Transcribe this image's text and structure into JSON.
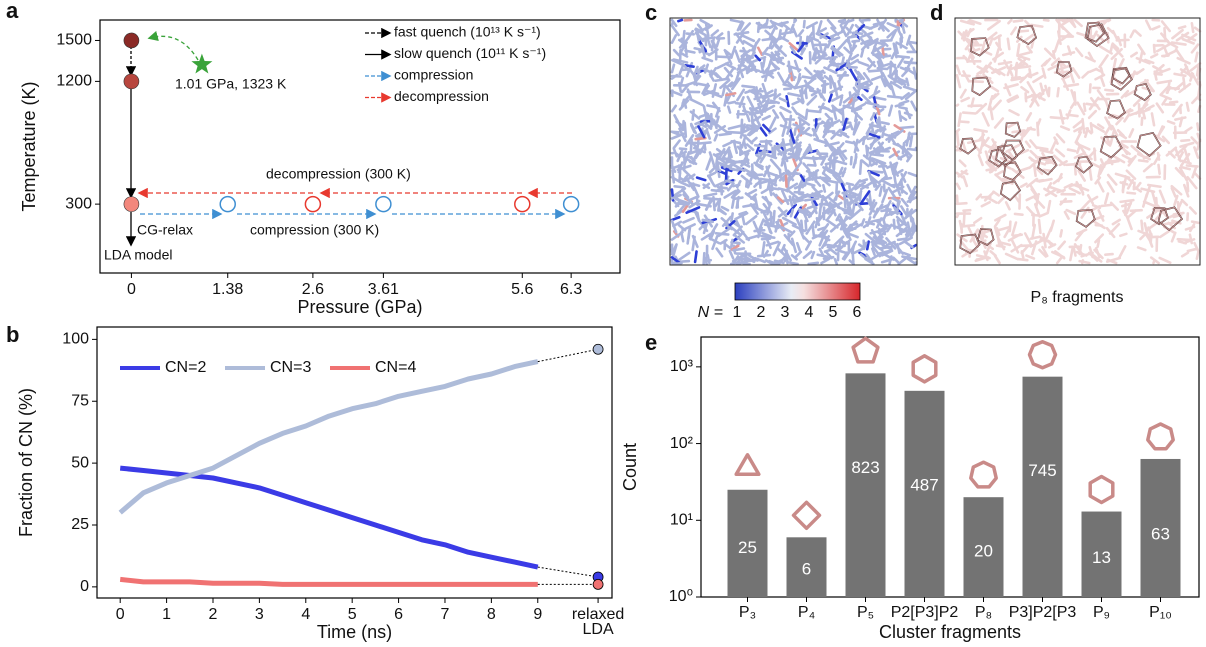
{
  "chart_data": [
    {
      "type": "scatter",
      "x_label": "Pressure (GPa)",
      "y_label": "Temperature (K)",
      "xlim": [
        -0.45,
        7
      ],
      "ylim": [
        -205,
        1650
      ],
      "xticks": [
        0,
        1.38,
        2.6,
        3.61,
        5.6,
        6.3
      ],
      "yticks": [
        300,
        1200,
        1500
      ],
      "series": [
        {
          "x": [
            0
          ],
          "values": [
            1500
          ],
          "color": "#8b2a26"
        },
        {
          "x": [
            0
          ],
          "values": [
            1200
          ],
          "color": "#b8463e"
        },
        {
          "x": [
            0
          ],
          "values": [
            300
          ],
          "color": "#f2877c"
        },
        {
          "x": [
            1.38,
            3.61,
            6.3
          ],
          "values": [
            300,
            300,
            300
          ],
          "color": "#3f8fd2",
          "hollow": true
        },
        {
          "x": [
            2.6,
            5.6
          ],
          "values": [
            300,
            300
          ],
          "color": "#e8392f",
          "hollow": true
        },
        {
          "x": [
            1.01
          ],
          "values": [
            1323
          ],
          "color": "#3aa33a",
          "marker": "star"
        }
      ],
      "legend": [
        {
          "label": "fast quench (10¹³ K s⁻¹)",
          "color": "#000000",
          "dashed": true
        },
        {
          "label": "slow quench (10¹¹ K s⁻¹)",
          "color": "#000000",
          "dashed": false
        },
        {
          "label": "compression",
          "color": "#3f8fd2",
          "dashed": true
        },
        {
          "label": "decompression",
          "color": "#e8392f",
          "dashed": true
        }
      ],
      "annotations": [
        "1.01 GPa, 1323 K",
        "decompression (300 K)",
        "compression (300 K)",
        "CG-relax",
        "LDA model"
      ]
    },
    {
      "type": "line",
      "x_label": "Time (ns)",
      "y_label": "Fraction of CN (%)",
      "xlim": [
        -0.5,
        10.6
      ],
      "ylim": [
        -4.5,
        105
      ],
      "xticks": [
        0,
        1,
        2,
        3,
        4,
        5,
        6,
        7,
        8,
        9,
        {
          "value": 10.3,
          "label": "relaxed LDA"
        }
      ],
      "yticks": [
        0,
        25,
        50,
        75,
        100
      ],
      "x": [
        0,
        0.5,
        1,
        1.5,
        2,
        2.5,
        3,
        3.5,
        4,
        4.5,
        5,
        5.5,
        6,
        6.5,
        7,
        7.5,
        8,
        8.5,
        9
      ],
      "series": [
        {
          "name": "CN=2",
          "color": "#3b3be6",
          "values": [
            48,
            47,
            46,
            45,
            44,
            42,
            40,
            37,
            34,
            31,
            28,
            25,
            22,
            19,
            17,
            14,
            12,
            10,
            8
          ],
          "relaxed": 4
        },
        {
          "name": "CN=3",
          "color": "#aebcd9",
          "values": [
            30,
            38,
            42,
            45,
            48,
            53,
            58,
            62,
            65,
            69,
            72,
            74,
            77,
            79,
            81,
            84,
            86,
            89,
            91
          ],
          "relaxed": 96
        },
        {
          "name": "CN=4",
          "color": "#f07272",
          "values": [
            3,
            2,
            2,
            2,
            1.5,
            1.5,
            1.5,
            1,
            1,
            1,
            1,
            1,
            1,
            1,
            1,
            1,
            1,
            1,
            1
          ],
          "relaxed": 1
        }
      ]
    },
    {
      "type": "bar",
      "x_label": "Cluster fragments",
      "y_label": "Count",
      "log_scale": true,
      "color": "#737373",
      "categories": [
        "P₃",
        "P₄",
        "P₅",
        "P2[P3]P2",
        "P₈",
        "P3]P2[P3",
        "P₉",
        "P₁₀"
      ],
      "values": [
        25,
        6,
        823,
        487,
        20,
        745,
        13,
        63
      ],
      "ylim": [
        1,
        2450
      ],
      "yticks": [
        {
          "value": 1,
          "label": "10⁰"
        },
        {
          "value": 10,
          "label": "10¹"
        },
        {
          "value": 100,
          "label": "10²"
        },
        {
          "value": 1000,
          "label": "10³"
        }
      ]
    }
  ],
  "panel_labels": [
    "a",
    "b",
    "c",
    "d",
    "e"
  ],
  "colorbar": {
    "label": "N =",
    "ticks": [
      1,
      2,
      3,
      4,
      5,
      6
    ]
  },
  "fragment_caption": "P₈ fragments"
}
